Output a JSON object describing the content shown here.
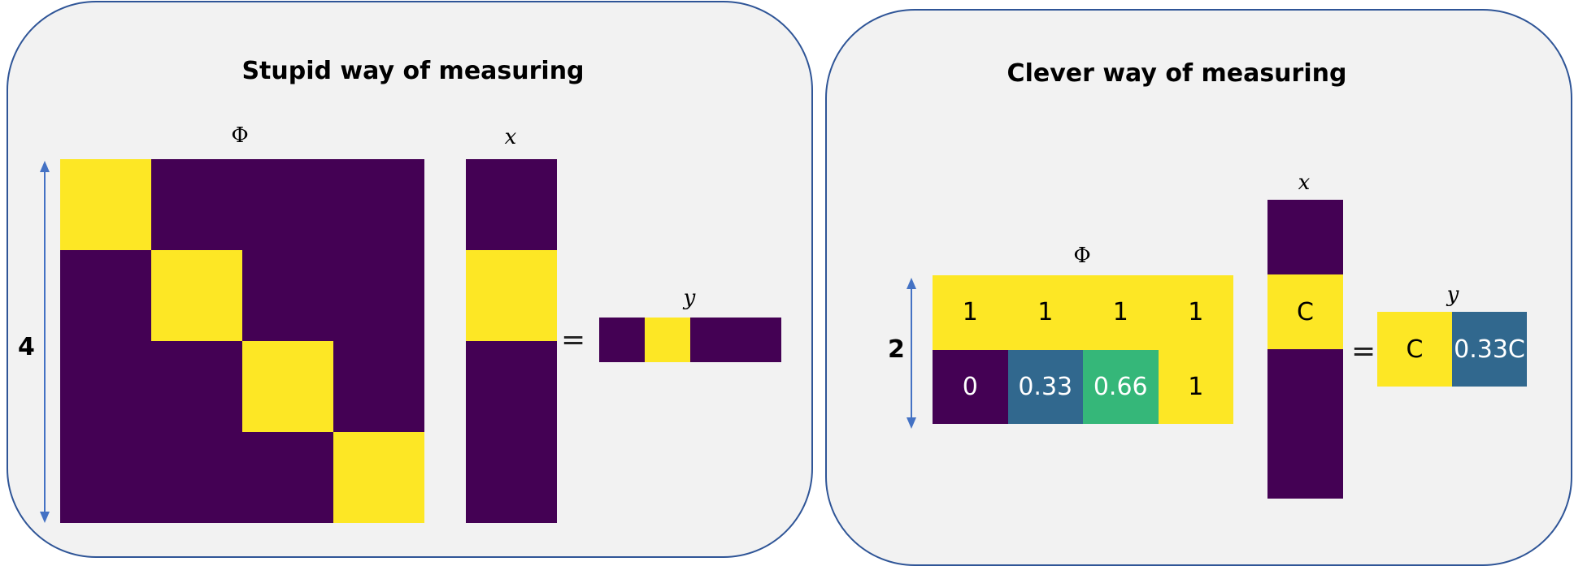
{
  "colors": {
    "purple": "#440154",
    "yellow": "#fde725",
    "teal": "#31688e",
    "green": "#35b779",
    "panel_bg": "#f2f2f2",
    "panel_border": "#2f5597",
    "arrow": "#4472c4"
  },
  "left_panel": {
    "title": "Stupid way of measuring",
    "phi_label": "Φ",
    "x_label": "x",
    "y_label": "y",
    "equals": "=",
    "rows_count": "4",
    "phi_matrix": [
      [
        1,
        0,
        0,
        0
      ],
      [
        0,
        1,
        0,
        0
      ],
      [
        0,
        0,
        1,
        0
      ],
      [
        0,
        0,
        0,
        1
      ]
    ],
    "x_vector": [
      0,
      1,
      0,
      0
    ],
    "y_vector": [
      0,
      1,
      0,
      0
    ]
  },
  "right_panel": {
    "title": "Clever way of measuring",
    "phi_label": "Φ",
    "x_label": "x",
    "y_label": "y",
    "equals": "=",
    "rows_count": "2",
    "phi_matrix": [
      [
        {
          "text": "1",
          "color": "yellow"
        },
        {
          "text": "1",
          "color": "yellow"
        },
        {
          "text": "1",
          "color": "yellow"
        },
        {
          "text": "1",
          "color": "yellow"
        }
      ],
      [
        {
          "text": "0",
          "color": "purple"
        },
        {
          "text": "0.33",
          "color": "teal"
        },
        {
          "text": "0.66",
          "color": "green"
        },
        {
          "text": "1",
          "color": "yellow"
        }
      ]
    ],
    "x_vector": [
      {
        "text": "",
        "color": "purple"
      },
      {
        "text": "C",
        "color": "yellow"
      },
      {
        "text": "",
        "color": "purple"
      },
      {
        "text": "",
        "color": "purple"
      }
    ],
    "y_vector": [
      {
        "text": "C",
        "color": "yellow"
      },
      {
        "text": "0.33C",
        "color": "teal"
      }
    ]
  }
}
